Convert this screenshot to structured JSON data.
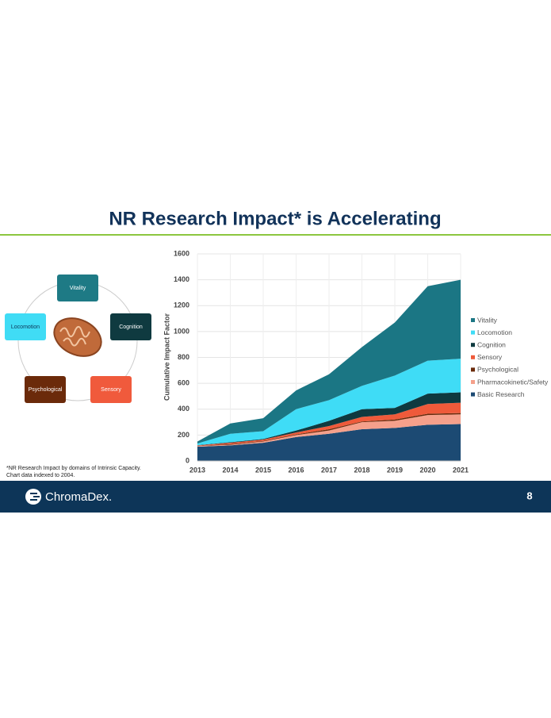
{
  "chart_data": {
    "type": "stacked_area",
    "title": "NR Research Impact* is Accelerating",
    "y_label": "Cumulative Impact Factor",
    "x": [
      2013,
      2014,
      2015,
      2016,
      2017,
      2018,
      2019,
      2020,
      2021
    ],
    "xlim": [
      2013,
      2021
    ],
    "xticks": [
      2013,
      2014,
      2015,
      2016,
      2017,
      2018,
      2019,
      2020,
      2021
    ],
    "ylim": [
      0,
      1600
    ],
    "yticks": [
      0,
      200,
      400,
      600,
      800,
      1000,
      1200,
      1400,
      1600
    ],
    "grid": true,
    "legend": "right",
    "series": [
      {
        "name": "Vitality",
        "color": "#1b7684",
        "values": [
          15,
          80,
          100,
          145,
          200,
          300,
          410,
          575,
          610
        ]
      },
      {
        "name": "Locomotion",
        "color": "#3fdcf6",
        "values": [
          13,
          65,
          60,
          165,
          160,
          180,
          250,
          255,
          260
        ]
      },
      {
        "name": "Cognition",
        "color": "#0e3a40",
        "values": [
          2,
          5,
          5,
          15,
          40,
          60,
          50,
          80,
          80
        ]
      },
      {
        "name": "Sensory",
        "color": "#ef5a3a",
        "values": [
          3,
          10,
          10,
          15,
          25,
          35,
          40,
          75,
          80
        ]
      },
      {
        "name": "Psychological",
        "color": "#6a2a0b",
        "values": [
          2,
          5,
          5,
          5,
          10,
          5,
          10,
          10,
          10
        ]
      },
      {
        "name": "Pharmacokinetic/Safety",
        "color": "#f5a08b",
        "values": [
          5,
          5,
          10,
          15,
          25,
          55,
          55,
          75,
          75
        ]
      },
      {
        "name": "Basic Research",
        "color": "#1c4a73",
        "values": [
          110,
          120,
          140,
          185,
          210,
          245,
          255,
          280,
          285
        ]
      }
    ]
  },
  "diagram": {
    "nodes": [
      {
        "label": "Vitality",
        "color": "#1e7a85"
      },
      {
        "label": "Cognition",
        "color": "#0f3a40"
      },
      {
        "label": "Sensory",
        "color": "#f05a3c"
      },
      {
        "label": "Psychological",
        "color": "#6b2a0a"
      },
      {
        "label": "Locomotion",
        "color": "#40dcf5"
      }
    ]
  },
  "footnote": [
    "*NR Research Impact by domains of Intrinsic Capacity.",
    "Chart data indexed to 2004."
  ],
  "footer": {
    "brand": "ChromaDex.",
    "page": "8"
  }
}
